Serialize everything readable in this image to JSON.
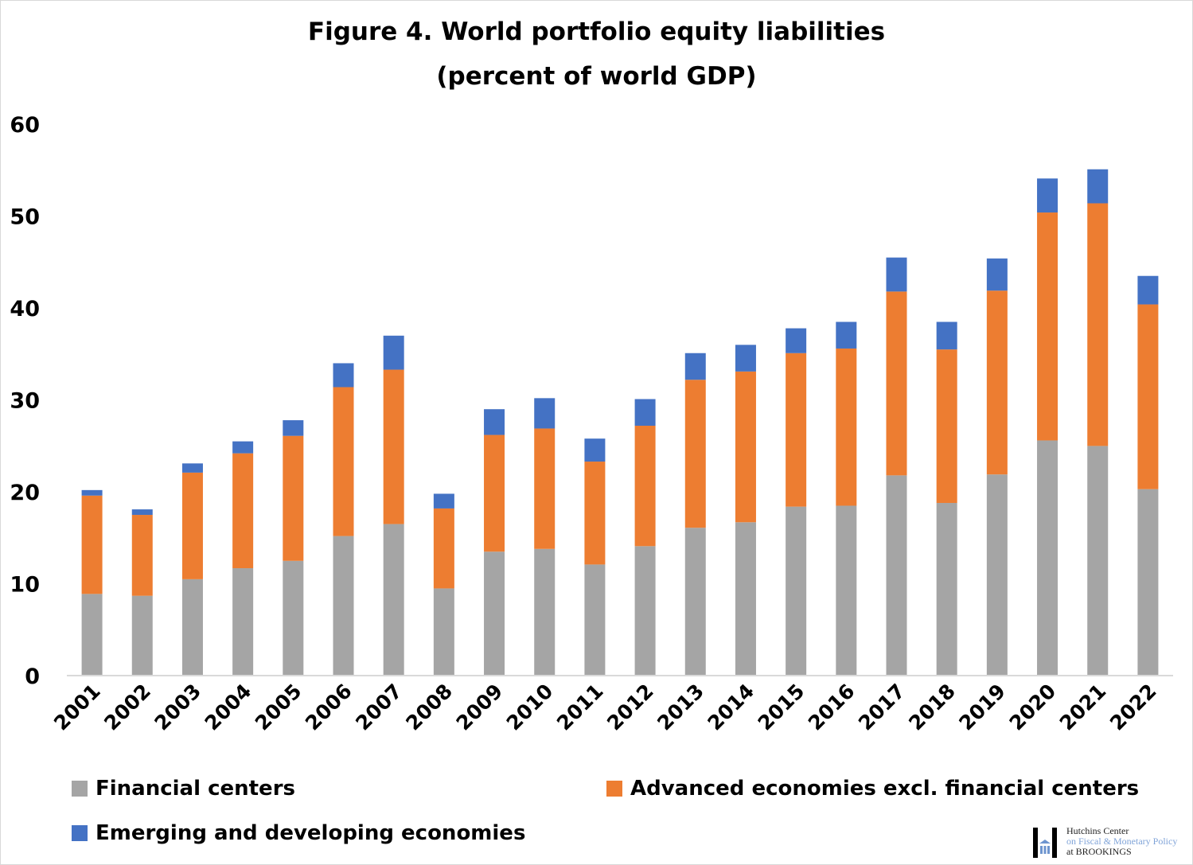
{
  "chart_data": {
    "type": "bar",
    "stacked": true,
    "title": "Figure 4. World portfolio equity liabilities",
    "subtitle": "(percent of world GDP)",
    "xlabel": "",
    "ylabel": "",
    "ylim": [
      0,
      60
    ],
    "yticks": [
      0,
      10,
      20,
      30,
      40,
      50,
      60
    ],
    "grid": false,
    "legend_position": "bottom",
    "categories": [
      "2001",
      "2002",
      "2003",
      "2004",
      "2005",
      "2006",
      "2007",
      "2008",
      "2009",
      "2010",
      "2011",
      "2012",
      "2013",
      "2014",
      "2015",
      "2016",
      "2017",
      "2018",
      "2019",
      "2020",
      "2021",
      "2022"
    ],
    "series": [
      {
        "name": "Financial centers",
        "color": "#a5a5a5",
        "values": [
          8.8,
          8.6,
          10.4,
          11.6,
          12.4,
          15.1,
          16.4,
          9.4,
          13.4,
          13.7,
          12.0,
          14.0,
          16.0,
          16.6,
          18.3,
          18.4,
          21.7,
          18.7,
          21.8,
          25.5,
          24.9,
          20.2
        ]
      },
      {
        "name": "Advanced economies excl. financial centers",
        "color": "#ed7d31",
        "values": [
          10.7,
          8.8,
          11.6,
          12.5,
          13.6,
          16.2,
          16.8,
          8.7,
          12.7,
          13.1,
          11.2,
          13.1,
          16.1,
          16.4,
          16.7,
          17.1,
          20.0,
          16.7,
          20.0,
          24.8,
          26.4,
          20.1
        ]
      },
      {
        "name": "Emerging and developing economies",
        "color": "#4472c4",
        "values": [
          0.6,
          0.6,
          1.0,
          1.3,
          1.7,
          2.6,
          3.7,
          1.6,
          2.8,
          3.3,
          2.5,
          2.9,
          2.9,
          2.9,
          2.7,
          2.9,
          3.7,
          3.0,
          3.5,
          3.7,
          3.7,
          3.1
        ]
      }
    ]
  },
  "logo": {
    "line1": "Hutchins Center",
    "line2": "on Fiscal & Monetary Policy",
    "line3": "at BROOKINGS"
  }
}
